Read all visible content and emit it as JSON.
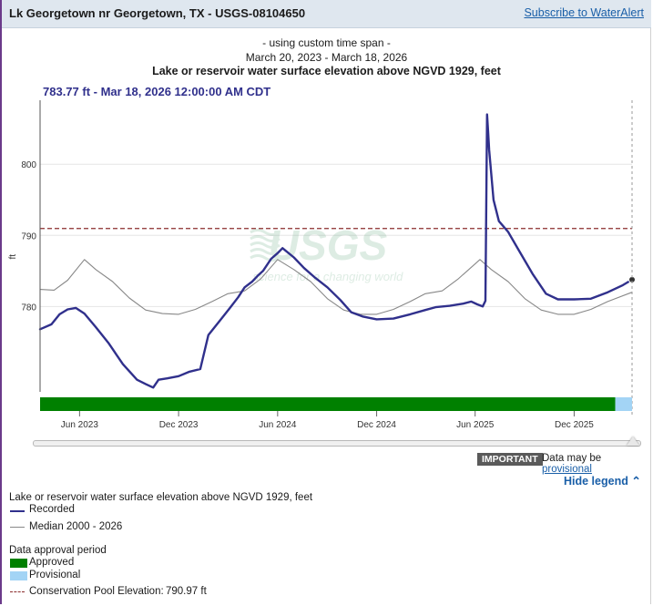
{
  "header": {
    "title": "Lk Georgetown nr Georgetown, TX - USGS-08104650",
    "subscribe_label": "Subscribe to WaterAlert"
  },
  "chart_header": {
    "custom_span": "- using custom time span -",
    "date_span": "March 20, 2023 - March 18, 2026",
    "title": "Lake or reservoir water surface elevation above NGVD 1929, feet"
  },
  "tooltip": "783.77 ft - Mar 18, 2026 12:00:00 AM CDT",
  "watermark": {
    "logo": "USGS",
    "tagline": "science for a changing world"
  },
  "chart_data": {
    "type": "line",
    "title": "Lake or reservoir water surface elevation above NGVD 1929, feet",
    "xlabel": "",
    "ylabel": "ft",
    "xlim": [
      "2023-03-20",
      "2026-03-18"
    ],
    "ylim": [
      768,
      809
    ],
    "yticks": [
      780,
      790,
      800
    ],
    "xtick_labels": [
      {
        "label": "Jun 2023",
        "date": "2023-06-01"
      },
      {
        "label": "Dec 2023",
        "date": "2023-12-01"
      },
      {
        "label": "Jun 2024",
        "date": "2024-06-01"
      },
      {
        "label": "Dec 2024",
        "date": "2024-12-01"
      },
      {
        "label": "Jun 2025",
        "date": "2025-06-01"
      },
      {
        "label": "Dec 2025",
        "date": "2025-12-01"
      }
    ],
    "grid": true,
    "legend_position": "bottom",
    "reference_line": {
      "name": "Conservation Pool Elevation",
      "value": 790.97,
      "label": "790.97 ft",
      "color": "#8b2d2d"
    },
    "series": [
      {
        "name": "Recorded",
        "color": "#30308c",
        "x": [
          "2023-03-20",
          "2023-04-10",
          "2023-04-25",
          "2023-05-10",
          "2023-05-25",
          "2023-06-10",
          "2023-07-01",
          "2023-07-25",
          "2023-08-20",
          "2023-09-15",
          "2023-10-01",
          "2023-10-15",
          "2023-10-25",
          "2023-11-10",
          "2023-12-01",
          "2023-12-20",
          "2024-01-10",
          "2024-01-25",
          "2024-02-15",
          "2024-03-05",
          "2024-03-20",
          "2024-04-01",
          "2024-04-15",
          "2024-04-25",
          "2024-05-05",
          "2024-05-20",
          "2024-06-01",
          "2024-06-10",
          "2024-07-01",
          "2024-07-20",
          "2024-08-10",
          "2024-09-01",
          "2024-09-25",
          "2024-10-15",
          "2024-11-05",
          "2024-12-01",
          "2025-01-01",
          "2025-02-01",
          "2025-03-01",
          "2025-03-20",
          "2025-04-15",
          "2025-05-10",
          "2025-05-25",
          "2025-06-05",
          "2025-06-15",
          "2025-06-20",
          "2025-06-23",
          "2025-06-25",
          "2025-06-27",
          "2025-07-05",
          "2025-07-15",
          "2025-08-01",
          "2025-08-20",
          "2025-09-15",
          "2025-10-10",
          "2025-11-01",
          "2025-12-01",
          "2026-01-01",
          "2026-02-01",
          "2026-03-01",
          "2026-03-18"
        ],
        "y": [
          776.8,
          777.5,
          778.9,
          779.6,
          779.8,
          779.0,
          777.1,
          774.8,
          771.9,
          769.7,
          769.1,
          768.6,
          769.7,
          769.9,
          770.2,
          770.8,
          771.2,
          776.0,
          778.0,
          779.8,
          781.3,
          782.7,
          783.5,
          784.3,
          785.0,
          786.7,
          787.5,
          788.2,
          786.9,
          785.4,
          784.0,
          782.7,
          780.9,
          779.2,
          778.6,
          778.2,
          778.3,
          778.9,
          779.5,
          779.9,
          780.1,
          780.4,
          780.7,
          780.3,
          780.0,
          780.8,
          807.0,
          804.5,
          802.0,
          795.0,
          792.0,
          790.5,
          788.0,
          784.6,
          781.8,
          781.0,
          781.0,
          781.1,
          782.0,
          783.0,
          783.77
        ]
      },
      {
        "name": "Median 2000 - 2026",
        "color": "#888888",
        "x": [
          "2023-03-20",
          "2023-04-15",
          "2023-05-10",
          "2023-06-10",
          "2023-07-01",
          "2023-08-01",
          "2023-09-01",
          "2023-10-01",
          "2023-11-01",
          "2023-12-01",
          "2024-01-01",
          "2024-02-01",
          "2024-03-01",
          "2024-04-01",
          "2024-05-01",
          "2024-06-01",
          "2024-07-01",
          "2024-08-01",
          "2024-09-01",
          "2024-10-01",
          "2024-11-01",
          "2024-12-01",
          "2025-01-01",
          "2025-02-01",
          "2025-03-01",
          "2025-04-01",
          "2025-05-01",
          "2025-06-10",
          "2025-07-01",
          "2025-08-01",
          "2025-09-01",
          "2025-10-01",
          "2025-11-01",
          "2025-12-01",
          "2026-01-01",
          "2026-02-01",
          "2026-03-18"
        ],
        "y": [
          782.4,
          782.3,
          783.7,
          786.6,
          785.2,
          783.5,
          781.2,
          779.5,
          779.0,
          778.9,
          779.6,
          780.7,
          781.8,
          782.2,
          783.9,
          786.6,
          785.2,
          783.5,
          781.1,
          779.5,
          778.9,
          778.9,
          779.6,
          780.7,
          781.8,
          782.2,
          783.9,
          786.6,
          785.2,
          783.5,
          781.1,
          779.5,
          778.9,
          778.9,
          779.6,
          780.7,
          782.0
        ]
      }
    ],
    "approval_bar": [
      {
        "status": "Approved",
        "from": "2023-03-20",
        "to": "2026-02-15",
        "color": "#008000"
      },
      {
        "status": "Provisional",
        "from": "2026-02-15",
        "to": "2026-03-18",
        "color": "#a3d4f5"
      }
    ]
  },
  "slider": {
    "label": "time range slider"
  },
  "notice": {
    "badge": "IMPORTANT",
    "text": "Data may be",
    "link": "provisional"
  },
  "legend_toggle": "Hide legend",
  "legend": {
    "series_title": "Lake or reservoir water surface elevation above NGVD 1929, feet",
    "recorded": "Recorded",
    "median": "Median 2000 - 2026",
    "approval_title": "Data approval period",
    "approved": "Approved",
    "provisional": "Provisional",
    "conservation_label": "Conservation Pool Elevation:",
    "conservation_value": "790.97 ft"
  },
  "colors": {
    "recorded": "#30308c",
    "median": "#888888",
    "approved": "#008000",
    "provisional": "#a3d4f5",
    "conservation": "#8b2d2d",
    "link": "#1a5fa8"
  }
}
